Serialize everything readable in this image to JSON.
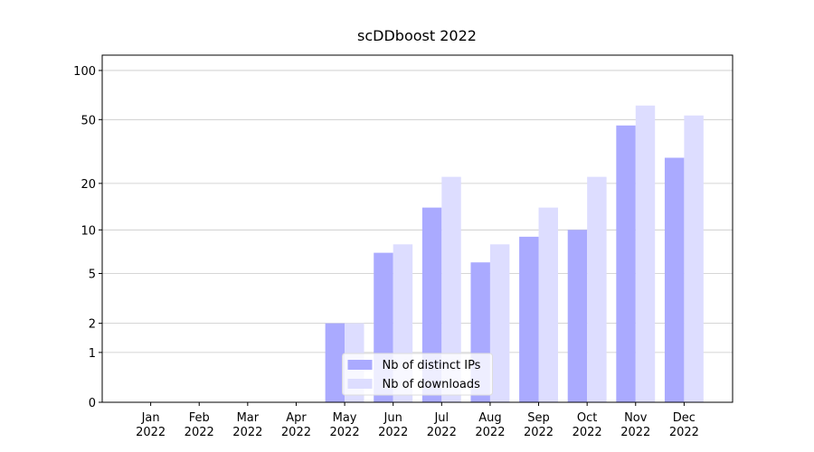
{
  "chart_data": {
    "type": "bar",
    "title": "scDDboost 2022",
    "categories": [
      "Jan\n2022",
      "Feb\n2022",
      "Mar\n2022",
      "Apr\n2022",
      "May\n2022",
      "Jun\n2022",
      "Jul\n2022",
      "Aug\n2022",
      "Sep\n2022",
      "Oct\n2022",
      "Nov\n2022",
      "Dec\n2022"
    ],
    "series": [
      {
        "name": "Nb of distinct IPs",
        "color": "#aaaaff",
        "values": [
          0,
          0,
          0,
          0,
          2,
          7,
          14,
          6,
          9,
          10,
          46,
          29
        ]
      },
      {
        "name": "Nb of downloads",
        "color": "#ddddff",
        "values": [
          0,
          0,
          0,
          0,
          2,
          8,
          22,
          8,
          14,
          22,
          61,
          53
        ]
      }
    ],
    "yscale": "log1p",
    "ylim": [
      0,
      124
    ],
    "yticks": [
      0,
      1,
      2,
      5,
      10,
      20,
      50,
      100
    ],
    "grid": true,
    "legend": "lower center"
  }
}
